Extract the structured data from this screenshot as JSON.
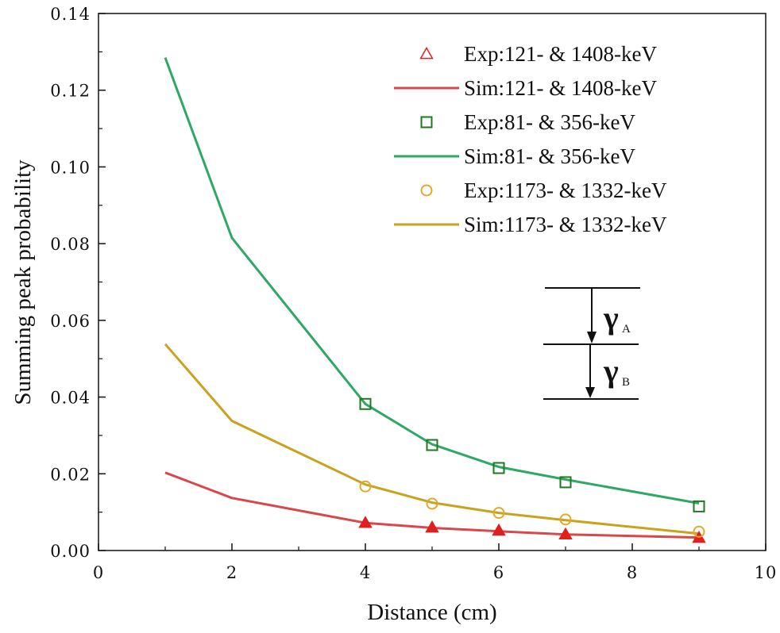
{
  "chart_data": {
    "type": "line",
    "title": "",
    "xlabel": "Distance (cm)",
    "ylabel": "Summing peak probability",
    "xlim": [
      0,
      10
    ],
    "ylim": [
      0,
      0.14
    ],
    "xticks": [
      0,
      2,
      4,
      6,
      8,
      10
    ],
    "xtick_labels": [
      "0",
      "2",
      "4",
      "6",
      "8",
      "10"
    ],
    "yticks": [
      0,
      0.02,
      0.04,
      0.06,
      0.08,
      0.1,
      0.12,
      0.14
    ],
    "ytick_labels": [
      "0.00",
      "0.02",
      "0.04",
      "0.06",
      "0.08",
      "0.10",
      "0.12",
      "0.14"
    ],
    "grid": false,
    "legend_position": "top-right",
    "series": [
      {
        "name": "Exp:121- & 1408-keV",
        "kind": "scatter",
        "marker": "triangle",
        "color": "#e0201f",
        "x": [
          4,
          5,
          6,
          7,
          9
        ],
        "y": [
          0.0072,
          0.006,
          0.0052,
          0.0042,
          0.0033
        ]
      },
      {
        "name": "Sim:121- & 1408-keV",
        "kind": "line",
        "color": "#d9474a",
        "x": [
          1,
          2,
          4,
          5,
          6,
          7,
          9
        ],
        "y": [
          0.0203,
          0.0137,
          0.0072,
          0.0059,
          0.005,
          0.0042,
          0.0034
        ]
      },
      {
        "name": "Exp:81- & 356-keV",
        "kind": "scatter",
        "marker": "square",
        "color": "#1f7a1f",
        "x": [
          4,
          5,
          6,
          7,
          9
        ],
        "y": [
          0.0382,
          0.0275,
          0.0215,
          0.0178,
          0.0115
        ]
      },
      {
        "name": "Sim:81- & 356-keV",
        "kind": "line",
        "color": "#2ea866",
        "x": [
          1,
          2,
          4,
          5,
          6,
          7,
          9
        ],
        "y": [
          0.1285,
          0.0815,
          0.0382,
          0.0277,
          0.0218,
          0.0185,
          0.0123
        ]
      },
      {
        "name": "Exp:1173- & 1332-keV",
        "kind": "scatter",
        "marker": "circle",
        "color": "#e3a82e",
        "x": [
          4,
          5,
          6,
          7,
          9
        ],
        "y": [
          0.0167,
          0.0122,
          0.0098,
          0.0081,
          0.0049
        ]
      },
      {
        "name": "Sim:1173- & 1332-keV",
        "kind": "line",
        "color": "#c9a21e",
        "x": [
          1,
          2,
          4,
          5,
          6,
          7,
          9
        ],
        "y": [
          0.0538,
          0.0338,
          0.0172,
          0.0125,
          0.0098,
          0.0079,
          0.0044
        ]
      }
    ],
    "annotation": {
      "labels": [
        {
          "symbol": "γ",
          "sub": "A"
        },
        {
          "symbol": "γ",
          "sub": "B"
        }
      ]
    }
  }
}
